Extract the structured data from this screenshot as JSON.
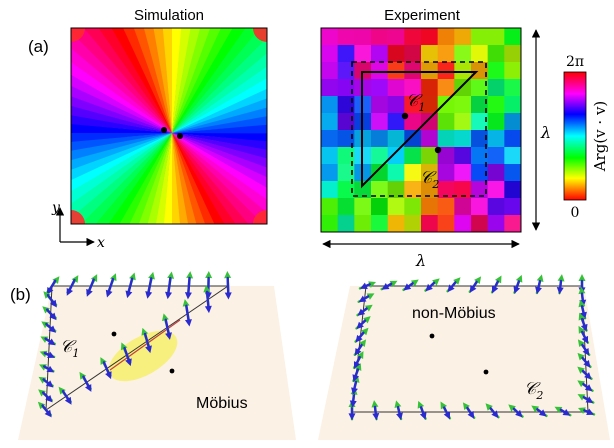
{
  "panel_a": {
    "label": "(a)",
    "sim_title": "Simulation",
    "exp_title": "Experiment",
    "axis_y": "y",
    "axis_x": "x",
    "lambda_vertical": "λ",
    "lambda_horizontal": "λ",
    "c1_label": "𝒞",
    "c1_sub": "1",
    "c2_label": "𝒞",
    "c2_sub": "2",
    "colorbar": {
      "top": "2π",
      "bottom": "0",
      "title": "Arg(v · v)"
    }
  },
  "panel_b": {
    "label": "(b)",
    "left_c1_label": "𝒞",
    "left_c1_sub": "1",
    "mobius_label": "Möbius",
    "non_mobius_label": "non-Möbius",
    "right_c2_label": "𝒞",
    "right_c2_sub": "2"
  },
  "colors": {
    "arrow_green": "#3cc83c",
    "arrow_blue": "#2a2ad0",
    "sheet": "#fbf1e4",
    "highlight": "#f5ee6a"
  }
}
